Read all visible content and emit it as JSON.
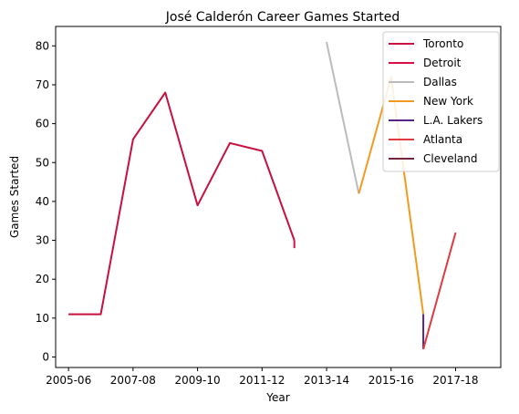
{
  "chart_data": {
    "type": "line",
    "title": "José Calderón  Career Games Started",
    "xlabel": "Year",
    "ylabel": "Games Started",
    "x_ticks": [
      "2005-06",
      "2007-08",
      "2009-10",
      "2011-12",
      "2013-14",
      "2015-16",
      "2017-18"
    ],
    "y_ticks": [
      0,
      10,
      20,
      30,
      40,
      50,
      60,
      70,
      80
    ],
    "xlim": [
      2004.6,
      2018.4
    ],
    "ylim": [
      -2.7,
      85
    ],
    "grid": false,
    "legend_position": "top-right",
    "series": [
      {
        "name": "Toronto",
        "color": "#c8103e",
        "points": [
          [
            2005,
            11
          ],
          [
            2006,
            11
          ],
          [
            2007,
            56
          ],
          [
            2008,
            68
          ],
          [
            2009,
            39
          ],
          [
            2010,
            55
          ],
          [
            2011,
            53
          ],
          [
            2012,
            30
          ]
        ]
      },
      {
        "name": "Detroit",
        "color": "#d31145",
        "points": [
          [
            2012,
            30
          ],
          [
            2012,
            28
          ]
        ]
      },
      {
        "name": "Dallas",
        "color": "#bbbbbb",
        "points": [
          [
            2013,
            81
          ],
          [
            2014,
            42
          ]
        ]
      },
      {
        "name": "New York",
        "color": "#f29a1f",
        "points": [
          [
            2014,
            42
          ],
          [
            2015,
            72
          ],
          [
            2016,
            11
          ]
        ]
      },
      {
        "name": "L.A. Lakers",
        "color": "#552583",
        "points": [
          [
            2016,
            11
          ],
          [
            2016,
            2
          ]
        ]
      },
      {
        "name": "Atlanta",
        "color": "#e03a3e",
        "points": [
          [
            2016,
            2
          ],
          [
            2017,
            32
          ]
        ]
      },
      {
        "name": "Cleveland",
        "color": "#6f263d",
        "points": []
      }
    ]
  }
}
